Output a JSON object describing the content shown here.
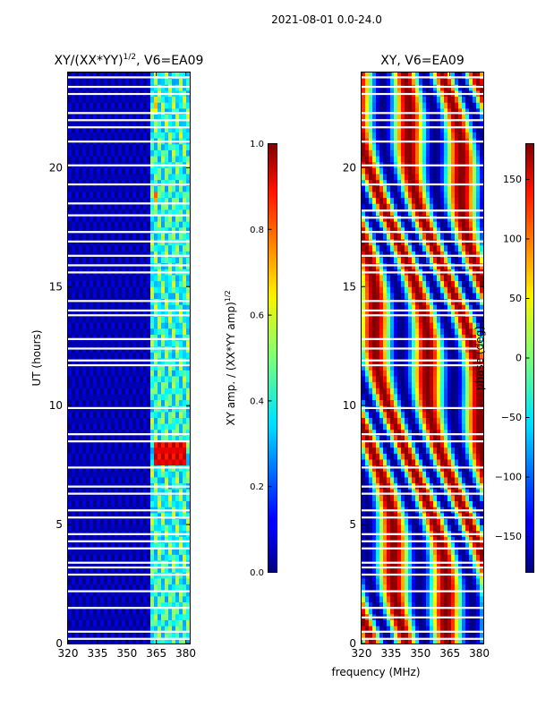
{
  "figure": {
    "suptitle": "2021-08-01 0.0-24.0",
    "xlabel": "frequency (MHz)"
  },
  "chart_data": [
    {
      "type": "heatmap",
      "title": "XY/(XX*YY)",
      "title_exponent": "1/2",
      "title_suffix": ", V6=EA09",
      "xlabel": "",
      "ylabel": "UT (hours)",
      "xlim": [
        320,
        382
      ],
      "ylim": [
        0,
        24
      ],
      "xticks": [
        320,
        335,
        350,
        365,
        380
      ],
      "yticks": [
        0,
        5,
        10,
        15,
        20
      ],
      "colorbar": {
        "label": "XY amp. / (XX*YY amp)",
        "label_exponent": "1/2",
        "range": [
          0.0,
          1.0
        ],
        "ticks": [
          "0.0",
          "0.2",
          "0.4",
          "0.6",
          "0.8",
          "1.0"
        ],
        "colormap": "jet"
      },
      "bands": [
        {
          "f0": 320,
          "f1": 362,
          "level": 0.05
        },
        {
          "f0": 362,
          "f1": 382,
          "level": 0.4
        },
        {
          "f0": 363,
          "f1": 366,
          "level": 0.75,
          "t0": 18.5,
          "t1": 19.0
        },
        {
          "f0": 363,
          "f1": 380,
          "level": 0.9,
          "t0": 7.4,
          "t1": 8.4
        },
        {
          "f0": 363,
          "f1": 366,
          "level": 0.65,
          "t0": 22.2,
          "t1": 23.0
        }
      ],
      "missing_rows_hours": [
        0.2,
        0.5,
        1.5,
        2.2,
        2.9,
        3.2,
        3.4,
        4.0,
        4.3,
        4.6,
        5.3,
        5.6,
        6.3,
        6.6,
        7.4,
        8.5,
        8.8,
        9.9,
        11.7,
        11.9,
        12.4,
        12.8,
        13.8,
        14.0,
        14.4,
        15.6,
        15.9,
        16.3,
        16.9,
        17.3,
        18.0,
        18.5,
        19.3,
        20.1,
        21.1,
        21.7,
        22.0,
        22.3,
        23.1,
        23.4,
        23.8
      ]
    },
    {
      "type": "heatmap",
      "title": "XY, V6=EA09",
      "xlabel": "",
      "ylabel": "",
      "xlim": [
        320,
        382
      ],
      "ylim": [
        0,
        24
      ],
      "xticks": [
        320,
        335,
        350,
        365,
        380
      ],
      "yticks": [
        0,
        5,
        10,
        15,
        20
      ],
      "colorbar": {
        "label": "phase (deg)",
        "range": [
          -180,
          180
        ],
        "ticks": [
          "−150",
          "−100",
          "−50",
          "0",
          "50",
          "100",
          "150"
        ],
        "tick_values": [
          -150,
          -100,
          -50,
          0,
          50,
          100,
          150
        ],
        "colormap": "jet"
      },
      "missing_rows_hours": [
        0.2,
        0.5,
        1.1,
        1.5,
        2.2,
        2.9,
        3.2,
        3.4,
        4.0,
        4.3,
        4.6,
        5.3,
        5.6,
        6.3,
        6.6,
        7.4,
        8.5,
        8.8,
        9.9,
        11.7,
        11.9,
        12.4,
        12.8,
        13.8,
        14.0,
        14.4,
        15.6,
        15.9,
        16.3,
        16.9,
        17.3,
        17.9,
        18.2,
        19.3,
        20.1,
        21.1,
        21.7,
        22.0,
        22.3,
        23.1,
        23.4,
        23.8
      ]
    }
  ]
}
